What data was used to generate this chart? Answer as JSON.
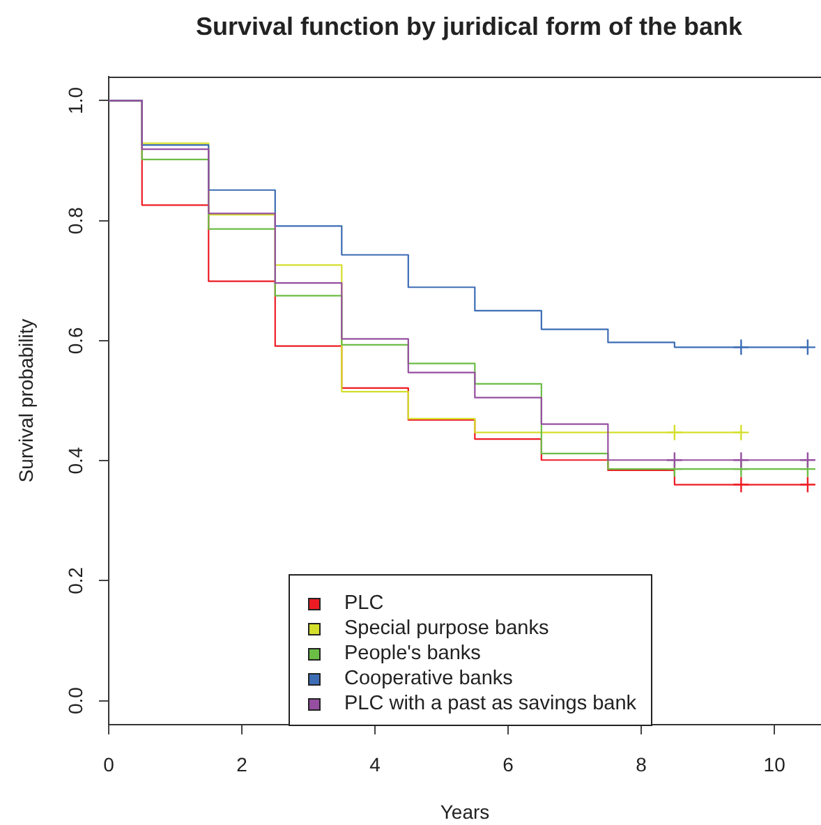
{
  "chart_data": {
    "type": "step",
    "title": "Survival function by juridical form of the bank",
    "xlabel": "Years",
    "ylabel": "Survival probability",
    "x": [
      0,
      0.5,
      1.5,
      2.5,
      3.5,
      4.5,
      5.5,
      6.5,
      7.5,
      8.5,
      9.5,
      10.5
    ],
    "series": [
      {
        "name": "PLC",
        "color": "#ed1c24",
        "values": [
          1,
          0.826,
          0.699,
          0.591,
          0.521,
          0.468,
          0.436,
          0.401,
          0.384,
          0.36,
          0.36,
          0.36
        ]
      },
      {
        "name": "Special purpose banks",
        "color": "#d4df2b",
        "x": [
          0,
          0.5,
          1.5,
          2.5,
          3.5,
          4.5,
          5.5,
          6.5,
          7.5,
          8.5,
          9.5
        ],
        "values": [
          1,
          0.929,
          0.81,
          0.726,
          0.515,
          0.47,
          0.447,
          0.447,
          0.447,
          0.447,
          0.447
        ]
      },
      {
        "name": "People's banks",
        "color": "#6cbd45",
        "values": [
          1,
          0.902,
          0.786,
          0.675,
          0.593,
          0.562,
          0.528,
          0.412,
          0.386,
          0.386,
          0.386,
          0.386
        ]
      },
      {
        "name": "Cooperative banks",
        "color": "#3d6db5",
        "values": [
          1,
          0.926,
          0.851,
          0.791,
          0.743,
          0.689,
          0.65,
          0.619,
          0.597,
          0.589,
          0.589,
          0.589
        ]
      },
      {
        "name": "PLC with a past as savings bank",
        "color": "#964fa0",
        "values": [
          1,
          0.919,
          0.812,
          0.696,
          0.603,
          0.547,
          0.505,
          0.461,
          0.401,
          0.401,
          0.401,
          0.401
        ]
      },
      {
        "type": "scatter",
        "marker": "cross",
        "color": "#ed1c24",
        "x": [
          9.5,
          10.5
        ],
        "values": [
          0.36,
          0.36
        ]
      },
      {
        "type": "scatter",
        "marker": "cross",
        "color": "#d4df2b",
        "x": [
          8.5,
          9.5
        ],
        "values": [
          0.447,
          0.447
        ]
      },
      {
        "type": "scatter",
        "marker": "cross",
        "color": "#6cbd45",
        "x": [
          8.5,
          9.5,
          10.5
        ],
        "values": [
          0.386,
          0.386,
          0.386
        ]
      },
      {
        "type": "scatter",
        "marker": "cross",
        "color": "#3d6db5",
        "x": [
          9.5,
          10.5
        ],
        "values": [
          0.589,
          0.589
        ]
      },
      {
        "type": "scatter",
        "marker": "cross",
        "color": "#964fa0",
        "x": [
          8.5,
          9.5,
          10.5
        ],
        "values": [
          0.401,
          0.401,
          0.401
        ]
      }
    ],
    "xlim": [
      0,
      10.7
    ],
    "xticks": [
      0,
      2,
      4,
      6,
      8,
      10
    ],
    "ylim": [
      -0.04,
      1.04
    ],
    "yticks": [
      {
        "value": 0,
        "label": "0.0"
      },
      0.2,
      0.4,
      0.6,
      0.8,
      {
        "value": 1,
        "label": "1.0"
      }
    ],
    "legend": "bottom"
  }
}
